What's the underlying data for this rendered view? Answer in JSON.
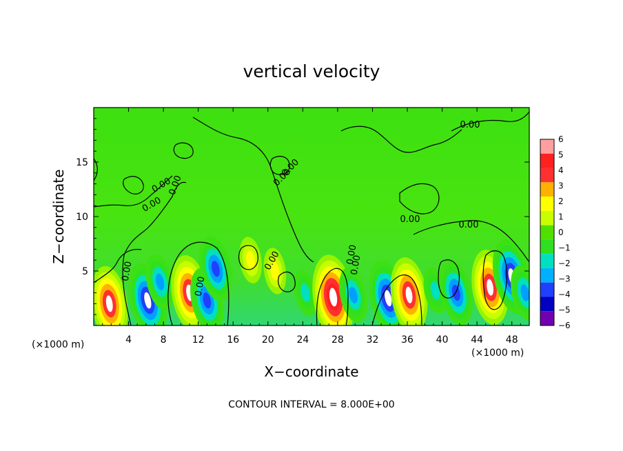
{
  "chart_data": {
    "type": "heatmap",
    "title": "vertical velocity",
    "xlabel": "X−coordinate",
    "ylabel": "Z−coordinate",
    "x_unit_label": "(×1000 m)",
    "y_unit_label": "(×1000 m)",
    "xlim": [
      0,
      50
    ],
    "ylim": [
      0,
      20
    ],
    "x_ticks": [
      4,
      8,
      12,
      16,
      20,
      24,
      28,
      32,
      36,
      40,
      44,
      48
    ],
    "y_ticks": [
      5,
      10,
      15
    ],
    "colorbar": {
      "min": -6,
      "max": 6,
      "labels": [
        "6",
        "5",
        "4",
        "3",
        "2",
        "1",
        "0",
        "−1",
        "−2",
        "−3",
        "−4",
        "−5",
        "−6"
      ],
      "colors": [
        "#ffa0a0",
        "#ff2020",
        "#ff3030",
        "#ffb000",
        "#ffff00",
        "#c8ff00",
        "#50e000",
        "#30e020",
        "#00e0c0",
        "#00b0ff",
        "#2040ff",
        "#0000c0",
        "#7000b0"
      ]
    },
    "contour_label": "0.00",
    "contour_interval_text": "CONTOUR INTERVAL = 8.000E+00",
    "features": [
      {
        "x": 1.8,
        "z": 2.0,
        "value": 5
      },
      {
        "x": 6.2,
        "z": 2.3,
        "value": -5
      },
      {
        "x": 7.6,
        "z": 4.0,
        "value": -3
      },
      {
        "x": 11.0,
        "z": 3.0,
        "value": 5
      },
      {
        "x": 13.0,
        "z": 2.3,
        "value": -4
      },
      {
        "x": 14.0,
        "z": 5.2,
        "value": -4
      },
      {
        "x": 18.0,
        "z": 6.0,
        "value": 2
      },
      {
        "x": 20.8,
        "z": 5.0,
        "value": 2
      },
      {
        "x": 24.3,
        "z": 3.0,
        "value": -2
      },
      {
        "x": 27.5,
        "z": 2.6,
        "value": 6
      },
      {
        "x": 29.8,
        "z": 2.8,
        "value": -3
      },
      {
        "x": 33.8,
        "z": 2.5,
        "value": -5
      },
      {
        "x": 36.2,
        "z": 2.8,
        "value": 5
      },
      {
        "x": 39.2,
        "z": 3.2,
        "value": -2
      },
      {
        "x": 41.6,
        "z": 3.0,
        "value": -4
      },
      {
        "x": 45.5,
        "z": 3.5,
        "value": 5
      },
      {
        "x": 48.0,
        "z": 4.5,
        "value": -5
      },
      {
        "x": 49.5,
        "z": 3.0,
        "value": -3
      }
    ]
  }
}
